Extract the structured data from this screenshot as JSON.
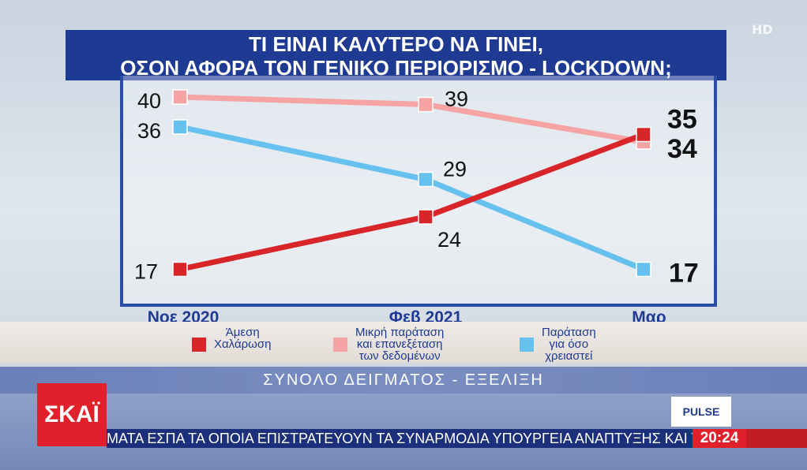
{
  "broadcast": {
    "hd_badge": "HD",
    "subtitle": "ΣΥΝΟΛΟ ΔΕΙΓΜΑΤΟΣ - ΕΞΕΛΙΞΗ",
    "channel_logo": "ΣΚΑΪ",
    "pollster_logo": "PULSE",
    "ticker_text": "ΜΑΤΑ ΕΣΠΑ ΤΑ ΟΠΟΙΑ ΕΠΙΣΤΡΑΤΕΥΟΥΝ ΤΑ ΣΥΝΑΡΜΟΔΙΑ ΥΠΟΥΡΓΕΙΑ ΑΝΑΠΤΥΞΗΣ ΚΑΙ ΤΟΥΡΙΣ",
    "clock": "20:24"
  },
  "chart_data": {
    "type": "line",
    "title_line1": "ΤΙ ΕΙΝΑΙ ΚΑΛΥΤΕΡΟ ΝΑ ΓΙΝΕΙ,",
    "title_line2": "ΟΣΟΝ ΑΦΟΡΑ ΤΟΝ ΓΕΝΙΚΟ ΠΕΡΙΟΡΙΣΜΟ - LOCKDOWN;",
    "categories": [
      "Νοε 2020",
      "Φεβ 2021",
      "Μαρ"
    ],
    "ylim": [
      14,
      42
    ],
    "grid": false,
    "legend_position": "bottom",
    "series": [
      {
        "name": "Άμεση\nΧαλάρωση",
        "color": "#d8252a",
        "values": [
          17,
          24,
          35
        ]
      },
      {
        "name": "Μικρή παράταση\nκαι επανεξέταση\nτων δεδομένων",
        "color": "#f5a3a3",
        "values": [
          40,
          39,
          34
        ]
      },
      {
        "name": "Παράταση\nγια όσο\nχρειαστεί",
        "color": "#67c1ee",
        "values": [
          36,
          29,
          17
        ]
      }
    ]
  }
}
